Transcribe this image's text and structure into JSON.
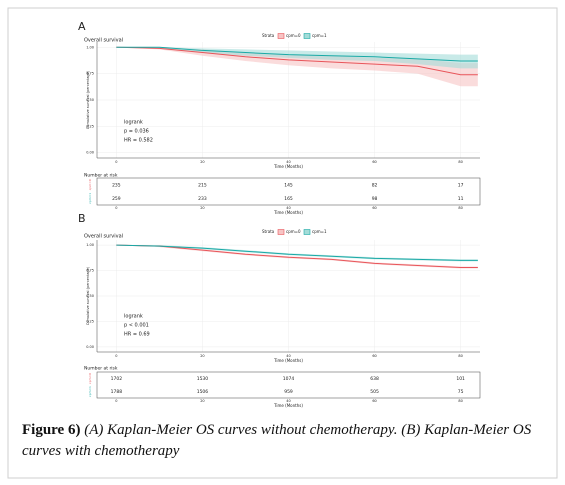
{
  "caption": {
    "label": "Figure 6)",
    "text": "(A) Kaplan-Meier OS curves without chemotherapy. (B) Kaplan-Meier OS curves with chemotherapy"
  },
  "chart_data": [
    {
      "type": "line",
      "panel": "A",
      "title": "Overall survival",
      "legend_title": "Strata",
      "xlabel": "Time (Months)",
      "ylabel": "Cumulative survival (percentage)",
      "x": [
        0,
        10,
        20,
        30,
        40,
        50,
        60,
        70,
        80,
        84
      ],
      "series": [
        {
          "name": "cpm=0",
          "color": "#e8555a",
          "band_color": "#f7c4c4",
          "values": [
            1,
            0.99,
            0.95,
            0.91,
            0.88,
            0.86,
            0.84,
            0.82,
            0.74,
            0.74
          ],
          "lower": [
            1,
            0.98,
            0.92,
            0.87,
            0.83,
            0.8,
            0.78,
            0.75,
            0.63,
            0.63
          ],
          "upper": [
            1,
            1,
            0.98,
            0.95,
            0.93,
            0.92,
            0.9,
            0.89,
            0.85,
            0.85
          ]
        },
        {
          "name": "cpm=1",
          "color": "#19a9a6",
          "band_color": "#a3dcd8",
          "values": [
            1,
            1,
            0.97,
            0.95,
            0.93,
            0.92,
            0.91,
            0.89,
            0.87,
            0.87
          ],
          "lower": [
            1,
            0.99,
            0.95,
            0.92,
            0.9,
            0.88,
            0.87,
            0.84,
            0.8,
            0.8
          ],
          "upper": [
            1,
            1,
            0.99,
            0.98,
            0.97,
            0.96,
            0.95,
            0.94,
            0.93,
            0.93
          ]
        }
      ],
      "xlim": [
        -4.5,
        84.5
      ],
      "xticks": [
        0,
        20,
        40,
        60,
        80
      ],
      "ylim": [
        -0.05,
        1.05
      ],
      "yticks": [
        {
          "value": 0,
          "label": "0.00"
        },
        {
          "value": 0.25,
          "label": "0.25"
        },
        {
          "value": 0.5,
          "label": "0.50"
        },
        {
          "value": 0.75,
          "label": "0.75"
        },
        {
          "value": 1,
          "label": "1.00"
        }
      ],
      "annotations": [
        "logrank",
        "p = 0.036",
        "HR = 0.582"
      ],
      "risk_table": {
        "title": "Number at risk",
        "x": [
          0,
          20,
          40,
          60,
          80
        ],
        "rows": [
          {
            "name": "cpm=0",
            "color": "#e8555a",
            "values": [
              235,
              215,
              145,
              82,
              17
            ]
          },
          {
            "name": "cpm=1",
            "color": "#19a9a6",
            "values": [
              259,
              233,
              165,
              98,
              11
            ]
          }
        ]
      }
    },
    {
      "type": "line",
      "panel": "B",
      "title": "Overall survival",
      "legend_title": "Strata",
      "xlabel": "Time (Months)",
      "ylabel": "Cumulative survival (percentage)",
      "x": [
        0,
        10,
        20,
        30,
        40,
        50,
        60,
        70,
        80,
        84
      ],
      "series": [
        {
          "name": "cpm=0",
          "color": "#e8555a",
          "band_color": "#f7c4c4",
          "values": [
            1,
            0.99,
            0.95,
            0.91,
            0.88,
            0.86,
            0.82,
            0.8,
            0.78,
            0.78
          ],
          "lower": [
            1,
            0.98,
            0.94,
            0.9,
            0.87,
            0.85,
            0.81,
            0.79,
            0.77,
            0.77
          ],
          "upper": [
            1,
            1,
            0.96,
            0.92,
            0.89,
            0.87,
            0.83,
            0.81,
            0.79,
            0.79
          ]
        },
        {
          "name": "cpm=1",
          "color": "#19a9a6",
          "band_color": "#a3dcd8",
          "values": [
            1,
            0.99,
            0.97,
            0.94,
            0.91,
            0.89,
            0.87,
            0.86,
            0.85,
            0.85
          ],
          "lower": [
            1,
            0.99,
            0.96,
            0.93,
            0.9,
            0.88,
            0.86,
            0.85,
            0.84,
            0.84
          ],
          "upper": [
            1,
            1,
            0.98,
            0.95,
            0.92,
            0.9,
            0.88,
            0.87,
            0.86,
            0.86
          ]
        }
      ],
      "xlim": [
        -4.5,
        84.5
      ],
      "xticks": [
        0,
        20,
        40,
        60,
        80
      ],
      "ylim": [
        -0.05,
        1.05
      ],
      "yticks": [
        {
          "value": 0,
          "label": "0.00"
        },
        {
          "value": 0.25,
          "label": "0.25"
        },
        {
          "value": 0.5,
          "label": "0.50"
        },
        {
          "value": 0.75,
          "label": "0.75"
        },
        {
          "value": 1,
          "label": "1.00"
        }
      ],
      "annotations": [
        "logrank",
        "p < 0.001",
        "HR = 0.69"
      ],
      "risk_table": {
        "title": "Number at risk",
        "x": [
          0,
          20,
          40,
          60,
          80
        ],
        "rows": [
          {
            "name": "cpm=0",
            "color": "#e8555a",
            "values": [
              1702,
              1530,
              1074,
              638,
              101
            ]
          },
          {
            "name": "cpm=1",
            "color": "#19a9a6",
            "values": [
              1788,
              1506,
              959,
              505,
              75
            ]
          }
        ]
      }
    }
  ]
}
